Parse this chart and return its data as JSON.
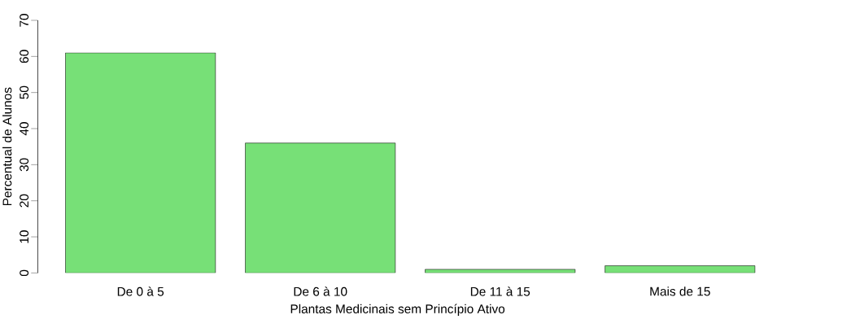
{
  "chart_data": {
    "type": "bar",
    "categories": [
      "De 0 à 5",
      "De 6 à 10",
      "De 11 à 15",
      "Mais de 15"
    ],
    "values": [
      61,
      36,
      1,
      2
    ],
    "color": "#77e077",
    "xlabel": "Plantas Medicinais sem Princípio Ativo",
    "ylabel": "Percentual de Alunos",
    "ylim": [
      0,
      70
    ],
    "yticks": [
      0,
      10,
      20,
      30,
      40,
      50,
      60,
      70
    ]
  }
}
